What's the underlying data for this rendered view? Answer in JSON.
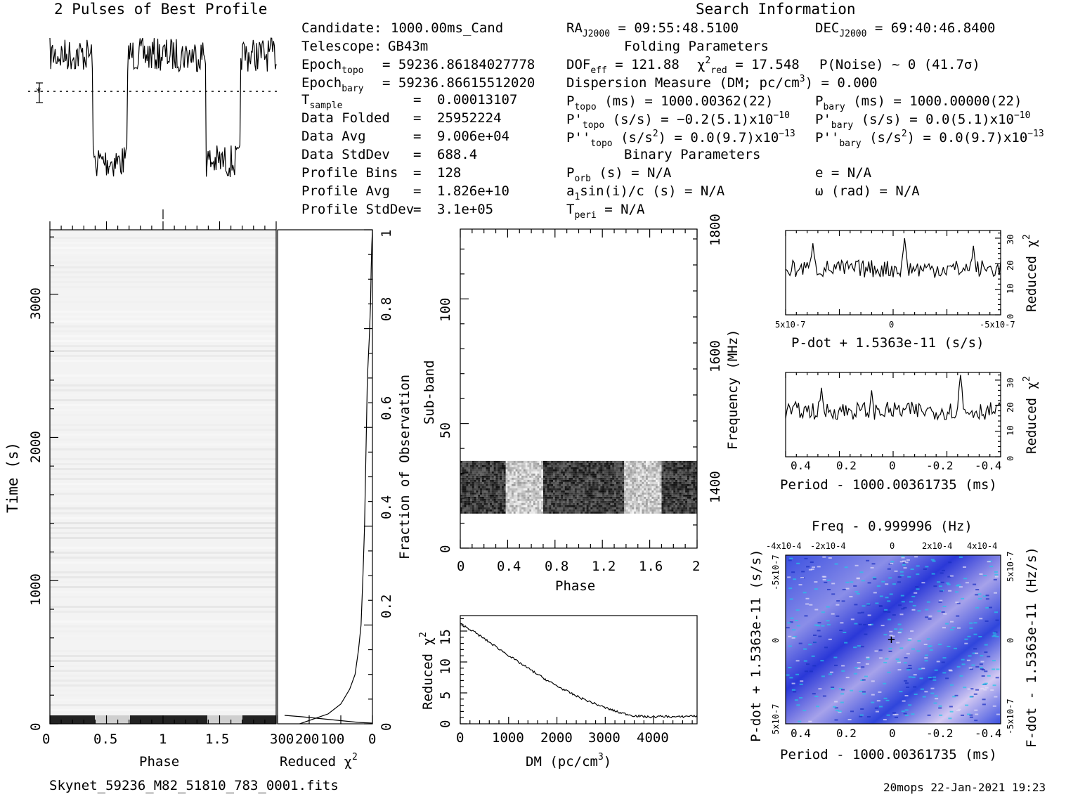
{
  "header": {
    "profile_title": "2 Pulses of Best Profile",
    "search_title": "Search Information",
    "folding_title": "Folding Parameters",
    "binary_title": "Binary Parameters"
  },
  "left_info": [
    {
      "label": "Candidate:",
      "value": "1000.00ms_Cand"
    },
    {
      "label": "Telescope:",
      "value": "GB43m"
    },
    {
      "label": "Epoch_topo",
      "value": "= 59236.86184027778"
    },
    {
      "label": "Epoch_bary",
      "value": "= 59236.86615512020"
    },
    {
      "label": "T_sample",
      "value": "0.00013107"
    },
    {
      "label": "Data Folded",
      "value": "25952224"
    },
    {
      "label": "Data Avg",
      "value": "9.006e+04"
    },
    {
      "label": "Data StdDev",
      "value": "688.4"
    },
    {
      "label": "Profile Bins",
      "value": "128"
    },
    {
      "label": "Profile Avg",
      "value": "1.826e+10"
    },
    {
      "label": "Profile StdDev",
      "value": "3.1e+05"
    }
  ],
  "search_info": {
    "ra": "RA_J2000 = 09:55:48.5100",
    "dec": "DEC_J2000 = 69:40:46.8400",
    "dof": "DOF_eff = 121.88",
    "chi2": "chi2_red = 17.548",
    "pnoise": "P(Noise) ~ 0   (41.7σ)",
    "dm": "Dispersion Measure (DM; pc/cm3) = 0.000",
    "p_topo": "P_topo (ms) =  1000.00362(22)",
    "p_bary": "P_bary (ms) =  1000.00000(22)",
    "pd_topo": "P'_topo (s/s) = -0.2(5.1)x10-10",
    "pd_bary": "P'_bary (s/s) = 0.0(5.1)x10-10",
    "pdd_topo": "P''_topo (s/s2) = 0.0(9.7)x10-13",
    "pdd_bary": "P''_bary (s/s2) = 0.0(9.7)x10-13",
    "p_orb": "P_orb (s) = N/A",
    "e": "e = N/A",
    "a1": "a1sin(i)/c (s) = N/A",
    "omega": "ω (rad) = N/A",
    "t_peri": "T_peri = N/A"
  },
  "footer": {
    "filename": "Skynet_59236_M82_51810_783_0001.fits",
    "stamp": "20mops 22-Jan-2021 19:23"
  },
  "axes": {
    "time_label": "Time (s)",
    "phase_label": "Phase",
    "reduced_chi2_label": "Reduced χ2",
    "fraction_label": "Fraction of Observation",
    "subband_label": "Sub-band",
    "frequency_label": "Frequency (MHz)",
    "dm_label": "DM (pc/cm3)",
    "pdot_label": "P-dot + 1.5363e-11 (s/s)",
    "period_label": "Period - 1000.00361735 (ms)",
    "freq_label": "Freq - 0.999996 (Hz)",
    "fdot_label": "F-dot - 1.5363e-11 (Hz/s)"
  },
  "chart_data": [
    {
      "type": "line",
      "title": "2 Pulses of Best Profile",
      "x_range": [
        0,
        2
      ],
      "description_values": "normalized profile, 2 pulses, low from phase ~0.37-0.7 and ~1.37-1.7",
      "segments": [
        {
          "phase": [
            0.0,
            0.38
          ],
          "level": "high"
        },
        {
          "phase": [
            0.38,
            0.68
          ],
          "level": "low"
        },
        {
          "phase": [
            0.68,
            1.38
          ],
          "level": "high"
        },
        {
          "phase": [
            1.38,
            1.68
          ],
          "level": "low"
        },
        {
          "phase": [
            1.68,
            2.0
          ],
          "level": "high"
        }
      ]
    },
    {
      "type": "heatmap",
      "name": "time-phase",
      "xlabel": "Phase",
      "ylabel": "Time (s)",
      "xlim": [
        0,
        2
      ],
      "ylim": [
        0,
        3400
      ],
      "x_ticks": [
        "0",
        "0.5",
        "1",
        "1.5"
      ],
      "y_ticks": [
        "0",
        "1000",
        "2000",
        "3000"
      ],
      "right_ticks": [
        "0",
        "0.2",
        "0.4",
        "0.6",
        "0.8",
        "1"
      ]
    },
    {
      "type": "line",
      "name": "reduced-chi2-vs-time",
      "xlabel": "Reduced χ2",
      "x_ticks": [
        "300",
        "200",
        "100",
        "0"
      ],
      "xlim": [
        300,
        0
      ],
      "ylim": [
        0,
        1
      ],
      "points": [
        [
          230,
          0.0
        ],
        [
          140,
          0.02
        ],
        [
          100,
          0.04
        ],
        [
          72,
          0.07
        ],
        [
          55,
          0.1
        ],
        [
          44,
          0.15
        ],
        [
          36,
          0.2
        ],
        [
          30,
          0.3
        ],
        [
          25,
          0.4
        ],
        [
          22,
          0.5
        ],
        [
          19,
          0.6
        ],
        [
          16,
          0.7
        ],
        [
          10,
          0.78
        ],
        [
          6,
          0.85
        ],
        [
          4,
          0.92
        ],
        [
          2,
          0.97
        ],
        [
          0,
          1.0
        ]
      ]
    },
    {
      "type": "heatmap",
      "name": "subband-phase",
      "xlabel": "Phase",
      "ylabel": "Sub-band",
      "xlim": [
        0,
        2
      ],
      "ylim": [
        0,
        128
      ],
      "x_ticks": [
        "0",
        "0.4",
        "0.8",
        "1.2",
        "1.6",
        "2"
      ],
      "y_ticks": [
        "0",
        "50",
        "100"
      ],
      "freq_ticks": [
        "1400",
        "1600",
        "1800"
      ],
      "band": [
        14,
        35
      ]
    },
    {
      "type": "line",
      "name": "dm-chi2",
      "xlabel": "DM (pc/cm3)",
      "ylabel": "Reduced χ2",
      "xlim": [
        0,
        4900
      ],
      "ylim": [
        0,
        17.5
      ],
      "x_ticks": [
        "0",
        "1000",
        "2000",
        "3000",
        "4000"
      ],
      "y_ticks": [
        "0",
        "5",
        "10",
        "15"
      ],
      "points": [
        [
          0,
          16.2
        ],
        [
          300,
          14.8
        ],
        [
          600,
          13.2
        ],
        [
          900,
          11.6
        ],
        [
          1200,
          10.0
        ],
        [
          1500,
          8.5
        ],
        [
          1800,
          7.0
        ],
        [
          2100,
          5.7
        ],
        [
          2400,
          4.5
        ],
        [
          2700,
          3.5
        ],
        [
          3000,
          2.6
        ],
        [
          3300,
          1.8
        ],
        [
          3600,
          1.3
        ],
        [
          3900,
          1.1
        ],
        [
          4200,
          1.2
        ],
        [
          4500,
          1.1
        ],
        [
          4800,
          1.3
        ],
        [
          4900,
          1.2
        ]
      ]
    },
    {
      "type": "line",
      "name": "pdot-chi2",
      "xlabel": "P-dot + 1.5363e-11 (s/s)",
      "ylabel": "Reduced χ2",
      "x_ticks": [
        "5x10-7",
        "0",
        "-5x10-7"
      ],
      "y_ticks": [
        "0",
        "10",
        "20",
        "30"
      ],
      "ylim": [
        0,
        33
      ]
    },
    {
      "type": "line",
      "name": "period-chi2",
      "xlabel": "Period - 1000.00361735 (ms)",
      "ylabel": "Reduced χ2",
      "x_ticks": [
        "0.4",
        "0.2",
        "0",
        "-0.2",
        "-0.4"
      ],
      "y_ticks": [
        "0",
        "10",
        "20",
        "30"
      ],
      "ylim": [
        0,
        33
      ]
    },
    {
      "type": "heatmap",
      "name": "period-pdot",
      "xlabel": "Period - 1000.00361735 (ms)",
      "ylabel": "P-dot + 1.5363e-11 (s/s)",
      "x_ticks": [
        "0.4",
        "0.2",
        "0",
        "-0.2",
        "-0.4"
      ],
      "top_ticks": [
        "-4x10-4",
        "-2x10-4",
        "0",
        "2x10-4",
        "4x10-4"
      ],
      "y_ticks": [
        "5x10-7",
        "0",
        "-5x10-7"
      ],
      "right_ticks": [
        "-5x10-7",
        "0",
        "5x10-7"
      ]
    }
  ]
}
